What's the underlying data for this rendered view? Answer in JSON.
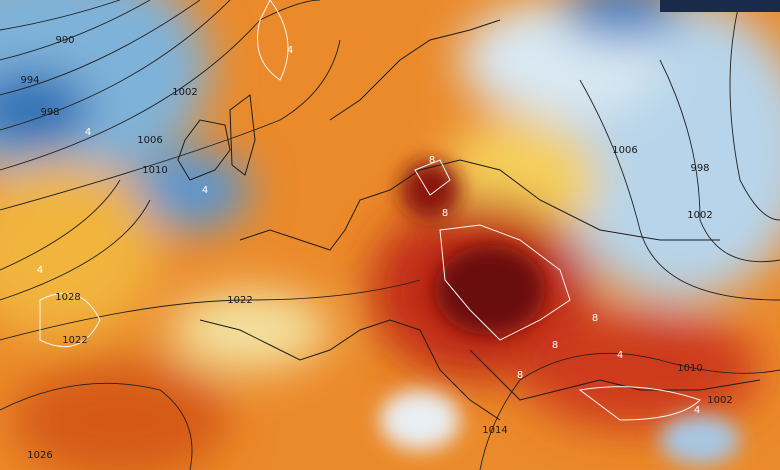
{
  "isobar_labels": [
    "990",
    "994",
    "998",
    "1002",
    "1006",
    "1010",
    "1028",
    "1022",
    "1026",
    "1022",
    "1014",
    "1010",
    "1002",
    "1006",
    "998",
    "1002"
  ],
  "anomaly_labels": [
    "4",
    "4",
    "4",
    "4",
    "4",
    "8",
    "8",
    "8",
    "8",
    "8",
    "4"
  ]
}
